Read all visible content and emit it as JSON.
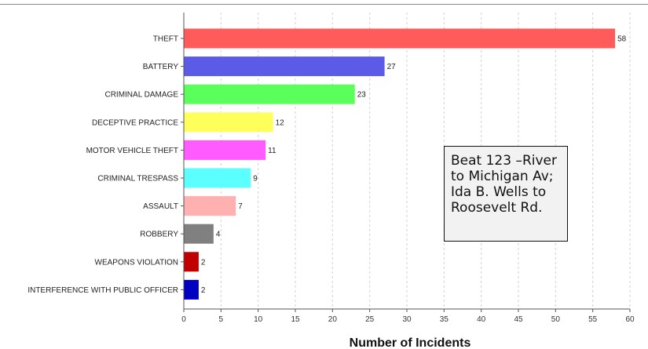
{
  "chart_data": {
    "type": "bar",
    "orientation": "horizontal",
    "title": "",
    "xlabel": "Number of Incidents",
    "ylabel": "",
    "xlim": [
      0,
      60
    ],
    "xticks": [
      0,
      5,
      10,
      15,
      20,
      25,
      30,
      35,
      40,
      45,
      50,
      55,
      60
    ],
    "grid": "vertical dashed",
    "categories": [
      "THEFT",
      "BATTERY",
      "CRIMINAL DAMAGE",
      "DECEPTIVE PRACTICE",
      "MOTOR VEHICLE THEFT",
      "CRIMINAL TRESPASS",
      "ASSAULT",
      "ROBBERY",
      "WEAPONS VIOLATION",
      "INTERFERENCE WITH PUBLIC OFFICER"
    ],
    "values": [
      58,
      27,
      23,
      12,
      11,
      9,
      7,
      4,
      2,
      2
    ],
    "colors": [
      "#ff5b5b",
      "#5b5be8",
      "#5bff5b",
      "#ffff5b",
      "#ff5bff",
      "#5bffff",
      "#ffb0b0",
      "#808080",
      "#c00000",
      "#0000c0"
    ]
  },
  "annotation": {
    "lines": [
      "Beat 123 –River",
      "to Michigan Av;",
      "Ida B. Wells to",
      "Roosevelt Rd."
    ]
  }
}
